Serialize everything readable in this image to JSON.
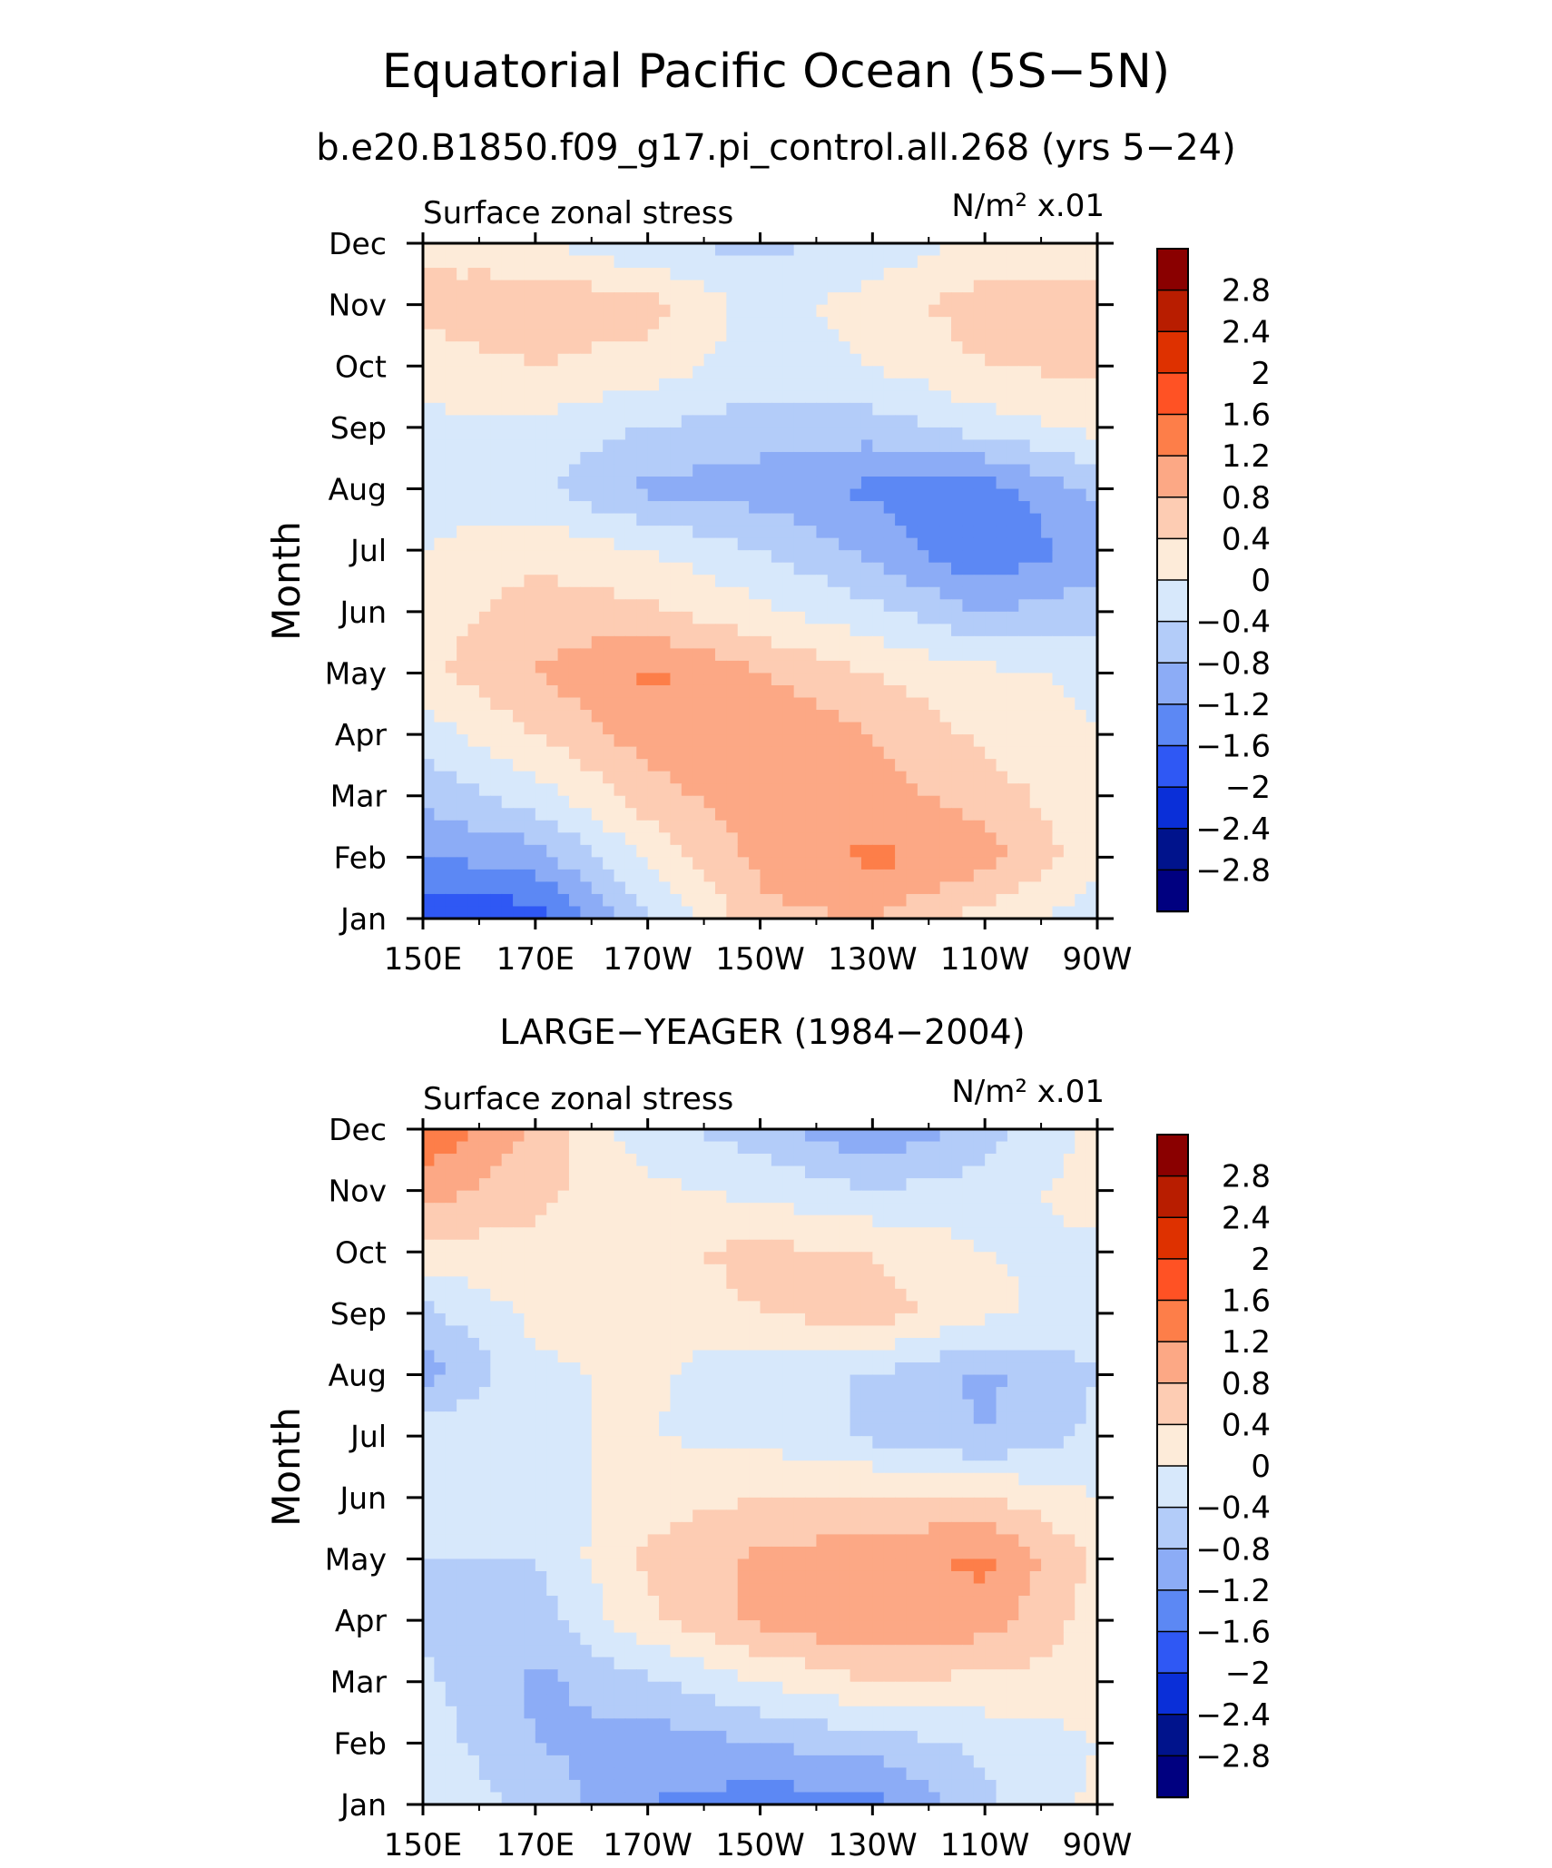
{
  "page": {
    "title": "Equatorial Pacific Ocean (5S−5N)",
    "subtitle": "b.e20.B1850.f09_g17.pi_control.all.268 (yrs 5−24)"
  },
  "chart_data": [
    {
      "type": "heatmap",
      "panel_title": "",
      "variable_label": "Surface zonal stress",
      "units_label": "N/m² x.01",
      "ylabel": "Month",
      "xlabel": "",
      "x_tick_labels": [
        "150E",
        "170E",
        "170W",
        "150W",
        "130W",
        "110W",
        "90W"
      ],
      "x_tick_lons": [
        150,
        170,
        190,
        210,
        230,
        250,
        270
      ],
      "xlim": [
        150,
        270
      ],
      "y_tick_labels": [
        "Jan",
        "Feb",
        "Mar",
        "Apr",
        "May",
        "Jun",
        "Jul",
        "Aug",
        "Sep",
        "Oct",
        "Nov",
        "Dec"
      ],
      "ylim": [
        1,
        12
      ],
      "contour_levels": [
        -2.8,
        -2.4,
        -2,
        -1.6,
        -1.2,
        -0.8,
        -0.4,
        0,
        0.4,
        0.8,
        1.2,
        1.6,
        2,
        2.4,
        2.8
      ],
      "colorbar_labels": [
        "2.8",
        "2.4",
        "2",
        "1.6",
        "1.2",
        "0.8",
        "0.4",
        "0",
        "−0.4",
        "−0.8",
        "−1.2",
        "−1.6",
        "−2",
        "−2.4",
        "−2.8"
      ],
      "colorbar_colors": [
        "#8a0000",
        "#b81d00",
        "#de3100",
        "#ff5224",
        "#fd7e49",
        "#fca885",
        "#fdccb3",
        "#fdebd9",
        "#d7e8fb",
        "#b3ccf9",
        "#8cacf6",
        "#5c88f4",
        "#2f58f4",
        "#0a2fd8",
        "#00138c",
        "#000080"
      ],
      "grid": {
        "lons": [
          150,
          170,
          190,
          210,
          230,
          250,
          270
        ],
        "months": [
          1,
          2,
          3,
          4,
          5,
          6,
          7,
          8,
          9,
          10,
          11,
          12
        ],
        "values": [
          [
            -2.0,
            -1.8,
            -0.5,
            0.7,
            0.8,
            0.2,
            -0.2
          ],
          [
            -1.2,
            -1.0,
            0.1,
            0.9,
            1.3,
            1.0,
            0.1
          ],
          [
            -0.7,
            -0.2,
            0.6,
            1.1,
            1.0,
            0.6,
            0.1
          ],
          [
            -0.2,
            0.4,
            1.0,
            1.2,
            0.8,
            0.3,
            0.0
          ],
          [
            0.3,
            0.8,
            1.3,
            0.8,
            0.4,
            0.1,
            -0.1
          ],
          [
            0.2,
            0.6,
            0.5,
            0.1,
            -0.3,
            -0.8,
            -0.6
          ],
          [
            0.0,
            0.3,
            0.0,
            -0.4,
            -0.9,
            -1.6,
            -1.0
          ],
          [
            -0.2,
            -0.3,
            -0.9,
            -1.0,
            -1.3,
            -1.4,
            -0.7
          ],
          [
            -0.1,
            -0.1,
            -0.4,
            -0.6,
            -0.6,
            -0.2,
            0.1
          ],
          [
            0.2,
            0.4,
            0.2,
            -0.2,
            0.0,
            0.4,
            0.5
          ],
          [
            0.5,
            0.7,
            0.6,
            -0.2,
            0.2,
            0.6,
            0.6
          ],
          [
            0.3,
            0.1,
            -0.4,
            -0.5,
            -0.3,
            0.1,
            0.2
          ]
        ]
      }
    },
    {
      "type": "heatmap",
      "panel_title": "LARGE−YEAGER (1984−2004)",
      "variable_label": "Surface zonal stress",
      "units_label": "N/m² x.01",
      "ylabel": "Month",
      "xlabel": "",
      "x_tick_labels": [
        "150E",
        "170E",
        "170W",
        "150W",
        "130W",
        "110W",
        "90W"
      ],
      "x_tick_lons": [
        150,
        170,
        190,
        210,
        230,
        250,
        270
      ],
      "xlim": [
        150,
        270
      ],
      "y_tick_labels": [
        "Jan",
        "Feb",
        "Mar",
        "Apr",
        "May",
        "Jun",
        "Jul",
        "Aug",
        "Sep",
        "Oct",
        "Nov",
        "Dec"
      ],
      "ylim": [
        1,
        12
      ],
      "contour_levels": [
        -2.8,
        -2.4,
        -2,
        -1.6,
        -1.2,
        -0.8,
        -0.4,
        0,
        0.4,
        0.8,
        1.2,
        1.6,
        2,
        2.4,
        2.8
      ],
      "colorbar_labels": [
        "2.8",
        "2.4",
        "2",
        "1.6",
        "1.2",
        "0.8",
        "0.4",
        "0",
        "−0.4",
        "−0.8",
        "−1.2",
        "−1.6",
        "−2",
        "−2.4",
        "−2.8"
      ],
      "colorbar_colors": [
        "#8a0000",
        "#b81d00",
        "#de3100",
        "#ff5224",
        "#fd7e49",
        "#fca885",
        "#fdccb3",
        "#fdebd9",
        "#d7e8fb",
        "#b3ccf9",
        "#8cacf6",
        "#5c88f4",
        "#2f58f4",
        "#0a2fd8",
        "#00138c",
        "#000080"
      ],
      "grid": {
        "lons": [
          150,
          170,
          190,
          210,
          230,
          250,
          270
        ],
        "months": [
          1,
          2,
          3,
          4,
          5,
          6,
          7,
          8,
          9,
          10,
          11,
          12
        ],
        "values": [
          [
            0.0,
            -0.5,
            -1.2,
            -1.4,
            -1.4,
            -0.5,
            0.1
          ],
          [
            -0.2,
            -0.8,
            -1.0,
            -0.8,
            -0.6,
            -0.3,
            0.0
          ],
          [
            -0.3,
            -0.9,
            -0.5,
            0.0,
            0.4,
            0.3,
            0.2
          ],
          [
            -0.5,
            -0.6,
            0.3,
            0.9,
            1.2,
            1.0,
            0.2
          ],
          [
            -0.4,
            -0.4,
            0.5,
            0.9,
            1.0,
            1.3,
            0.3
          ],
          [
            -0.2,
            -0.2,
            0.2,
            0.4,
            0.5,
            0.4,
            0.0
          ],
          [
            -0.1,
            0.0,
            0.0,
            -0.1,
            -0.5,
            -0.8,
            -0.3
          ],
          [
            -1.0,
            -0.1,
            0.1,
            -0.4,
            -0.4,
            -0.9,
            -0.4
          ],
          [
            -0.5,
            0.1,
            0.2,
            0.4,
            0.6,
            0.1,
            -0.2
          ],
          [
            0.2,
            0.3,
            0.3,
            0.5,
            0.4,
            0.0,
            -0.1
          ],
          [
            1.0,
            0.5,
            0.1,
            -0.1,
            -0.4,
            -0.2,
            0.2
          ],
          [
            1.6,
            0.7,
            -0.3,
            -0.6,
            -1.2,
            -0.6,
            0.1
          ]
        ]
      }
    }
  ]
}
